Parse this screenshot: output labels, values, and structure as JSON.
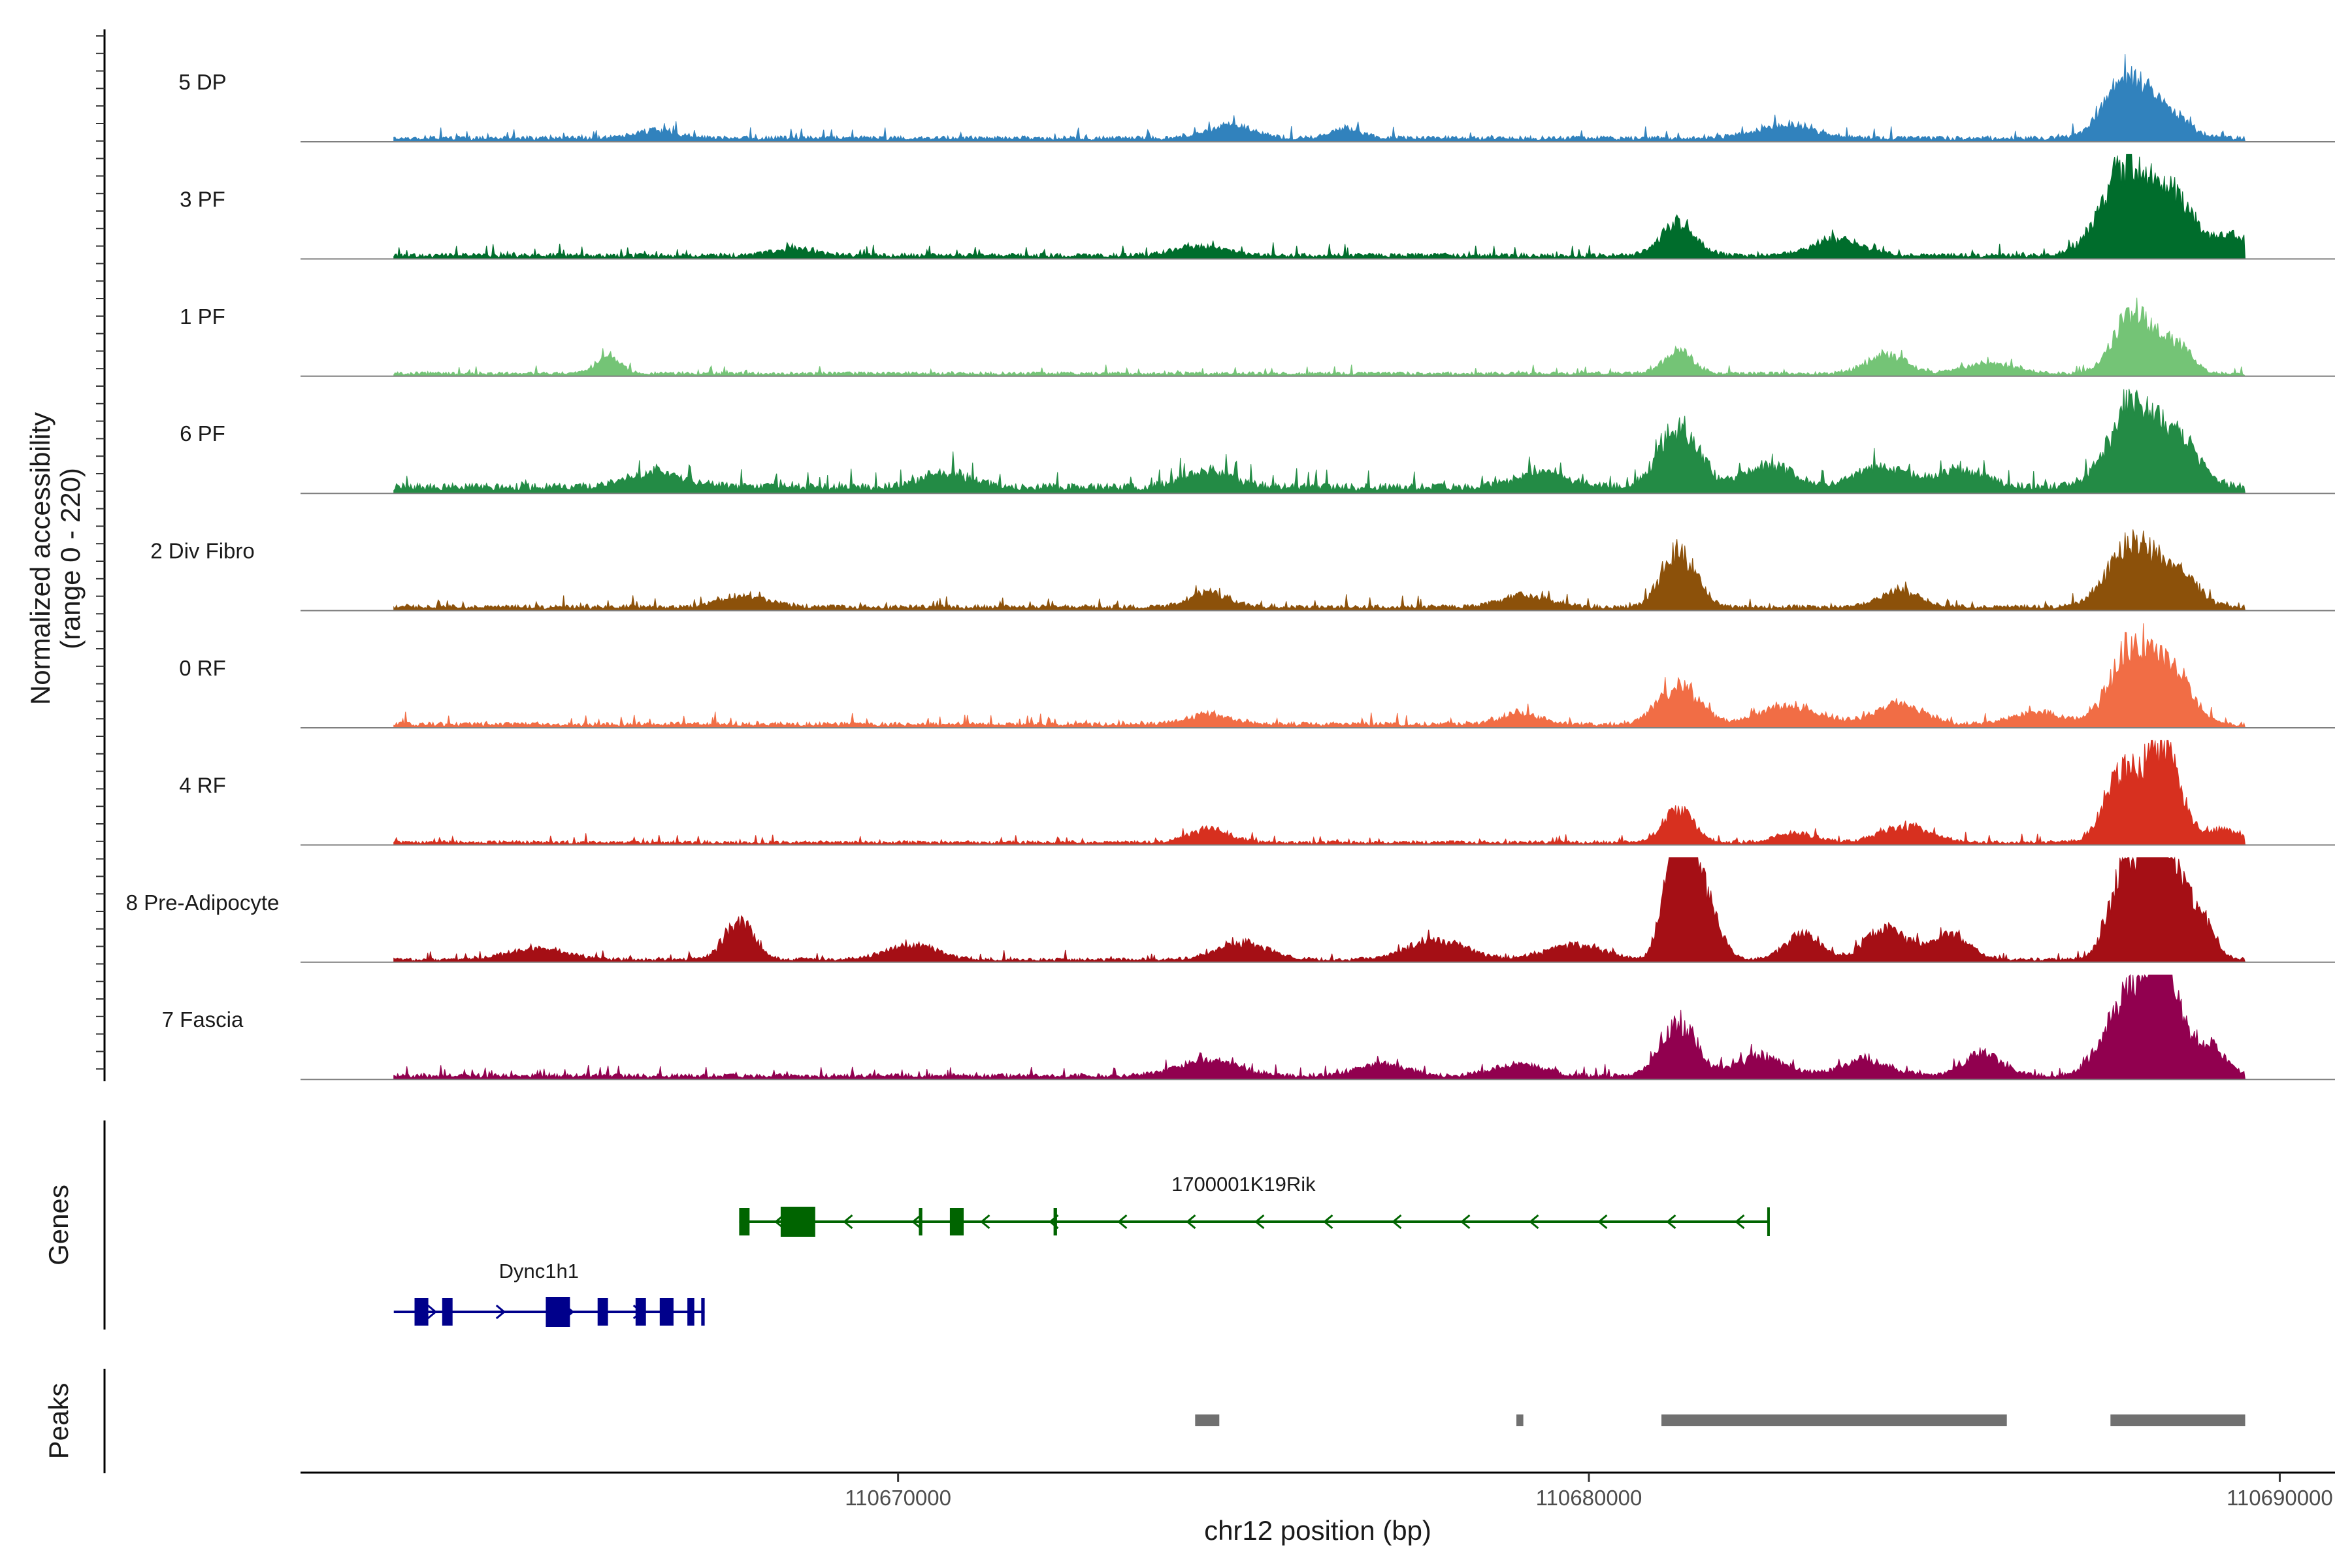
{
  "colors": {
    "background": "#ffffff",
    "baseline": "#7f7f7f",
    "axis": "#000000",
    "peak": "#707070",
    "gene_1700001K19Rik": "#006400",
    "gene_Dync1h1": "#00008b"
  },
  "chart_data": {
    "type": "area",
    "title": "",
    "xlabel": "chr12 position (bp)",
    "ylabel": "Normalized accessibility",
    "ylabel_range": "(range 0 - 220)",
    "ylim": [
      0,
      220
    ],
    "xlim": [
      110661350,
      110690800
    ],
    "x_ticks": [
      110670000,
      110680000,
      110690000
    ],
    "x_tick_labels": [
      "110670000",
      "110680000",
      "110690000"
    ],
    "signal_start": 110662700,
    "signal_end": 110689500,
    "tracks": [
      {
        "name": "5 DP",
        "color": "#3182bd",
        "peaks": [
          [
            110682850,
            24,
            600
          ],
          [
            110687800,
            110,
            450
          ],
          [
            110688400,
            40,
            400
          ],
          [
            110676500,
            18,
            300
          ],
          [
            110666500,
            14,
            400
          ],
          [
            110674800,
            22,
            500
          ]
        ],
        "baseline": 8
      },
      {
        "name": "3 PF",
        "color": "#006d2c",
        "peaks": [
          [
            110681300,
            60,
            350
          ],
          [
            110683600,
            30,
            500
          ],
          [
            110687800,
            170,
            500
          ],
          [
            110688500,
            90,
            350
          ],
          [
            110689300,
            40,
            450
          ],
          [
            110674400,
            18,
            500
          ],
          [
            110668500,
            14,
            400
          ]
        ],
        "baseline": 8
      },
      {
        "name": "1 PF",
        "color": "#74c476",
        "peaks": [
          [
            110665800,
            30,
            250
          ],
          [
            110681300,
            40,
            300
          ],
          [
            110684300,
            34,
            400
          ],
          [
            110687900,
            110,
            400
          ],
          [
            110688500,
            50,
            300
          ],
          [
            110685800,
            20,
            500
          ]
        ],
        "baseline": 6
      },
      {
        "name": "6 PF",
        "color": "#238b45",
        "peaks": [
          [
            110681300,
            110,
            400
          ],
          [
            110682600,
            40,
            500
          ],
          [
            110684200,
            36,
            500
          ],
          [
            110685400,
            32,
            500
          ],
          [
            110687900,
            160,
            500
          ],
          [
            110688600,
            70,
            400
          ],
          [
            110666500,
            28,
            600
          ],
          [
            110674500,
            30,
            500
          ],
          [
            110679300,
            30,
            500
          ],
          [
            110670700,
            26,
            500
          ]
        ],
        "baseline": 14
      },
      {
        "name": "2 Div Fibro",
        "color": "#8c510a",
        "peaks": [
          [
            110681300,
            100,
            350
          ],
          [
            110684500,
            30,
            400
          ],
          [
            110687900,
            120,
            500
          ],
          [
            110688600,
            50,
            350
          ],
          [
            110674500,
            26,
            400
          ],
          [
            110679100,
            22,
            500
          ],
          [
            110667800,
            20,
            500
          ]
        ],
        "baseline": 8
      },
      {
        "name": "0 RF",
        "color": "#f16d45",
        "peaks": [
          [
            110681300,
            70,
            400
          ],
          [
            110682900,
            34,
            600
          ],
          [
            110684500,
            38,
            500
          ],
          [
            110687900,
            150,
            450
          ],
          [
            110688500,
            80,
            350
          ],
          [
            110674500,
            18,
            400
          ],
          [
            110679000,
            20,
            400
          ],
          [
            110686500,
            22,
            500
          ]
        ],
        "baseline": 8
      },
      {
        "name": "4 RF",
        "color": "#d7301f",
        "peaks": [
          [
            110681300,
            60,
            300
          ],
          [
            110684600,
            30,
            500
          ],
          [
            110687700,
            120,
            350
          ],
          [
            110688300,
            180,
            350
          ],
          [
            110689200,
            24,
            350
          ],
          [
            110674500,
            24,
            400
          ],
          [
            110683000,
            18,
            400
          ]
        ],
        "baseline": 6
      },
      {
        "name": "8 Pre-Adipocyte",
        "color": "#a50f15",
        "peaks": [
          [
            110681300,
            320,
            250
          ],
          [
            110681650,
            120,
            300
          ],
          [
            110667700,
            70,
            300
          ],
          [
            110687800,
            180,
            350
          ],
          [
            110688300,
            240,
            300
          ],
          [
            110688800,
            90,
            300
          ],
          [
            110683100,
            50,
            350
          ],
          [
            110684300,
            60,
            400
          ],
          [
            110685200,
            50,
            400
          ],
          [
            110670200,
            28,
            500
          ],
          [
            110675000,
            32,
            500
          ],
          [
            110677800,
            35,
            600
          ],
          [
            110679800,
            26,
            600
          ],
          [
            110664800,
            20,
            600
          ]
        ],
        "baseline": 6
      },
      {
        "name": "7 Fascia",
        "color": "#91004f",
        "peaks": [
          [
            110681300,
            100,
            350
          ],
          [
            110682500,
            36,
            500
          ],
          [
            110684000,
            30,
            500
          ],
          [
            110685700,
            40,
            400
          ],
          [
            110687800,
            150,
            450
          ],
          [
            110688300,
            200,
            300
          ],
          [
            110688900,
            60,
            400
          ],
          [
            110674500,
            28,
            600
          ],
          [
            110677000,
            22,
            500
          ],
          [
            110679000,
            22,
            500
          ]
        ],
        "baseline": 8
      }
    ],
    "genes": [
      {
        "name": "1700001K19Rik",
        "strand": "-",
        "color": "#006400",
        "row": 1,
        "start": 110667700,
        "end": 110682600,
        "exons": [
          [
            110667700,
            110667850
          ],
          [
            110668300,
            110668800
          ],
          [
            110670300,
            110670350
          ],
          [
            110670750,
            110670950
          ],
          [
            110672250,
            110672300
          ]
        ]
      },
      {
        "name": "Dync1h1",
        "strand": "+",
        "color": "#00008b",
        "row": 2,
        "start": 110662700,
        "end": 110667200,
        "exons": [
          [
            110663000,
            110663200
          ],
          [
            110663400,
            110663550
          ],
          [
            110664900,
            110665250
          ],
          [
            110665650,
            110665800
          ],
          [
            110666200,
            110666350
          ],
          [
            110666550,
            110666750
          ],
          [
            110666950,
            110667050
          ],
          [
            110667150,
            110667200
          ]
        ]
      }
    ],
    "peak_regions": [
      [
        110674300,
        110674650
      ],
      [
        110678950,
        110679050
      ],
      [
        110681050,
        110686050
      ],
      [
        110687550,
        110689500
      ]
    ],
    "panel_labels": {
      "genes": "Genes",
      "peaks": "Peaks"
    }
  }
}
